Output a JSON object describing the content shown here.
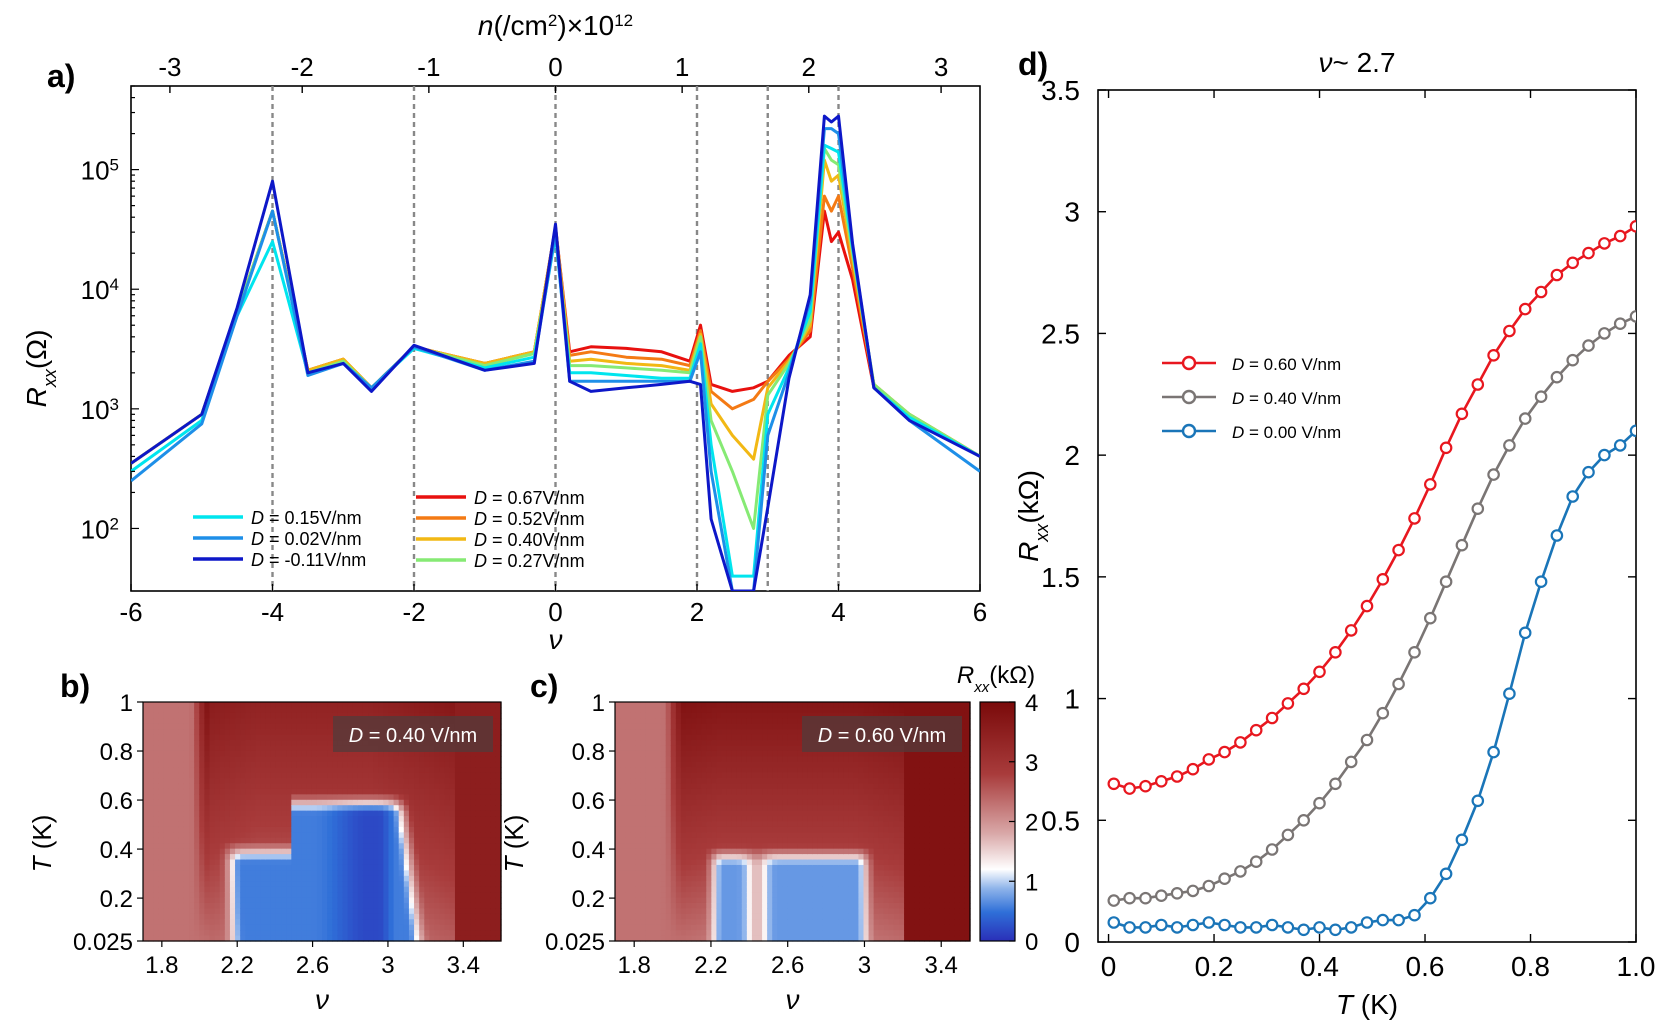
{
  "panels": {
    "a": {
      "label": "a)"
    },
    "b": {
      "label": "b)"
    },
    "c": {
      "label": "c)"
    },
    "d": {
      "label": "d)"
    }
  },
  "colorbar": {
    "title_sym": "R",
    "title_sub": "xx",
    "title_unit": "(kΩ)",
    "ticks": [
      "4",
      "3",
      "2",
      "1",
      "0"
    ]
  },
  "chart_data": [
    {
      "id": "a",
      "type": "line",
      "xlabel": "ν",
      "ylabel_sym": "R",
      "ylabel_sub": "xx",
      "ylabel_unit": "(Ω)",
      "top_axis_label": "n(/cm²)×10¹²",
      "top_axis_parts": {
        "sym": "n",
        "unit": "(/cm",
        "sup2": "2",
        "close": ")",
        "times": "×10",
        "exp": "12"
      },
      "xlim": [
        -6,
        6
      ],
      "ylim": [
        30,
        500000
      ],
      "yscale": "log",
      "x_ticks": [
        "-6",
        "-4",
        "-2",
        "0",
        "2",
        "4",
        "6"
      ],
      "y_ticks": [
        {
          "base": "10",
          "exp": "2",
          "value": 100
        },
        {
          "base": "10",
          "exp": "3",
          "value": 1000
        },
        {
          "base": "10",
          "exp": "4",
          "value": 10000
        },
        {
          "base": "10",
          "exp": "5",
          "value": 100000
        }
      ],
      "top_ticks": [
        {
          "label": "-3",
          "nu": -5.45
        },
        {
          "label": "-2",
          "nu": -3.58
        },
        {
          "label": "-1",
          "nu": -1.79
        },
        {
          "label": "0",
          "nu": 0
        },
        {
          "label": "1",
          "nu": 1.79
        },
        {
          "label": "2",
          "nu": 3.58
        },
        {
          "label": "3",
          "nu": 5.45
        }
      ],
      "dashed_lines_nu": [
        -4,
        -2,
        0,
        2,
        3,
        4
      ],
      "legend_left": [
        {
          "text": "D = 0.15V/nm",
          "color": "#00e5ee"
        },
        {
          "text": "D = 0.02V/nm",
          "color": "#1e8fe8"
        },
        {
          "text": "D = -0.11V/nm",
          "color": "#0d17c8"
        }
      ],
      "legend_right": [
        {
          "text": "D = 0.67V/nm",
          "color": "#e8110f"
        },
        {
          "text": "D = 0.52V/nm",
          "color": "#f47a14"
        },
        {
          "text": "D = 0.40V/nm",
          "color": "#f2b814"
        },
        {
          "text": "D = 0.27V/nm",
          "color": "#86ea74"
        }
      ],
      "series": [
        {
          "name": "D = 0.67V/nm",
          "color": "#e8110f",
          "x": [
            -6,
            -5,
            -4.5,
            -4.0,
            -3.5,
            -3.0,
            -2.6,
            -2.0,
            -1.0,
            -0.3,
            0.0,
            0.2,
            0.5,
            1.0,
            1.5,
            1.9,
            2.05,
            2.2,
            2.5,
            2.8,
            3.0,
            3.3,
            3.6,
            3.8,
            3.9,
            4.0,
            4.2,
            4.5,
            5.0,
            6.0
          ],
          "y": [
            350,
            900,
            6500,
            45000,
            2100,
            2600,
            1500,
            3300,
            2400,
            3000,
            33000,
            3000,
            3300,
            3200,
            3000,
            2500,
            5000,
            1600,
            1400,
            1500,
            1700,
            2800,
            4000,
            45000,
            25000,
            30000,
            12000,
            1500,
            900,
            400
          ]
        },
        {
          "name": "D = 0.52V/nm",
          "color": "#f47a14",
          "x": [
            -6,
            -5,
            -4.5,
            -4.0,
            -3.5,
            -3.0,
            -2.6,
            -2.0,
            -1.0,
            -0.3,
            0.0,
            0.2,
            0.5,
            1.0,
            1.5,
            1.9,
            2.05,
            2.2,
            2.5,
            2.8,
            3.0,
            3.3,
            3.6,
            3.8,
            3.9,
            4.0,
            4.2,
            4.5,
            5.0,
            6.0
          ],
          "y": [
            350,
            900,
            6500,
            45000,
            2100,
            2600,
            1500,
            3300,
            2400,
            3000,
            33000,
            2800,
            3000,
            2700,
            2600,
            2300,
            4500,
            1400,
            1000,
            1200,
            1700,
            2600,
            4500,
            60000,
            45000,
            60000,
            15000,
            1600,
            900,
            400
          ]
        },
        {
          "name": "D = 0.40V/nm",
          "color": "#f2b814",
          "x": [
            -6,
            -5,
            -4.5,
            -4.0,
            -3.5,
            -3.0,
            -2.6,
            -2.0,
            -1.0,
            -0.3,
            0.0,
            0.2,
            0.5,
            1.0,
            1.5,
            1.9,
            2.05,
            2.2,
            2.5,
            2.8,
            3.0,
            3.3,
            3.6,
            3.8,
            3.9,
            4.0,
            4.2,
            4.5,
            5.0,
            6.0
          ],
          "y": [
            350,
            900,
            6500,
            45000,
            2100,
            2600,
            1500,
            3300,
            2400,
            3000,
            33000,
            2500,
            2600,
            2400,
            2300,
            2100,
            4200,
            1100,
            600,
            380,
            1500,
            2500,
            5000,
            120000,
            80000,
            90000,
            18000,
            1600,
            900,
            400
          ]
        },
        {
          "name": "D = 0.27V/nm",
          "color": "#86ea74",
          "x": [
            -6,
            -5,
            -4.5,
            -4.0,
            -3.5,
            -3.0,
            -2.6,
            -2.0,
            -1.0,
            -0.3,
            0.0,
            0.2,
            0.5,
            1.0,
            1.5,
            1.9,
            2.05,
            2.2,
            2.5,
            2.8,
            3.0,
            3.3,
            3.6,
            3.8,
            3.9,
            4.0,
            4.2,
            4.5,
            5.0,
            6.0
          ],
          "y": [
            350,
            900,
            6500,
            45000,
            2000,
            2500,
            1500,
            3300,
            2300,
            2900,
            30000,
            2300,
            2300,
            2200,
            2100,
            2000,
            4000,
            800,
            300,
            100,
            1300,
            2400,
            5500,
            150000,
            120000,
            110000,
            20000,
            1600,
            900,
            400
          ]
        },
        {
          "name": "D = 0.15V/nm",
          "color": "#00e5ee",
          "x": [
            -6,
            -5,
            -4.5,
            -4.0,
            -3.5,
            -3.0,
            -2.6,
            -2.0,
            -1.0,
            -0.3,
            0.0,
            0.2,
            0.5,
            1.0,
            1.5,
            1.9,
            2.05,
            2.2,
            2.5,
            2.8,
            3.0,
            3.3,
            3.6,
            3.8,
            3.9,
            4.0,
            4.2,
            4.5,
            5.0,
            6.0
          ],
          "y": [
            300,
            800,
            6000,
            25000,
            2000,
            2400,
            1500,
            3200,
            2200,
            2700,
            28000,
            2000,
            2000,
            1900,
            1800,
            1800,
            3500,
            500,
            40,
            40,
            900,
            2200,
            6500,
            160000,
            150000,
            140000,
            22000,
            1500,
            850,
            400
          ]
        },
        {
          "name": "D = 0.02V/nm",
          "color": "#1e8fe8",
          "x": [
            -6,
            -5,
            -4.5,
            -4.0,
            -3.5,
            -3.0,
            -2.6,
            -2.0,
            -1.0,
            -0.3,
            0.0,
            0.2,
            0.5,
            1.0,
            1.5,
            1.9,
            2.05,
            2.2,
            2.5,
            2.8,
            3.0,
            3.3,
            3.6,
            3.8,
            3.9,
            4.0,
            4.2,
            4.5,
            5.0,
            6.0
          ],
          "y": [
            250,
            750,
            6000,
            45000,
            1900,
            2400,
            1500,
            3300,
            2100,
            2500,
            30000,
            1700,
            1700,
            1700,
            1700,
            1700,
            3000,
            300,
            30,
            30,
            600,
            2000,
            8000,
            220000,
            220000,
            200000,
            23000,
            1500,
            800,
            300
          ]
        },
        {
          "name": "D = -0.11V/nm",
          "color": "#0d17c8",
          "x": [
            -6,
            -5,
            -4.5,
            -4.0,
            -3.5,
            -3.0,
            -2.6,
            -2.0,
            -1.0,
            -0.3,
            0.0,
            0.2,
            0.5,
            1.0,
            1.5,
            1.9,
            2.05,
            2.2,
            2.5,
            2.8,
            3.0,
            3.3,
            3.6,
            3.8,
            3.9,
            4.0,
            4.2,
            4.5,
            5.0,
            6.0
          ],
          "y": [
            350,
            900,
            7000,
            80000,
            2000,
            2400,
            1400,
            3400,
            2100,
            2400,
            35000,
            1700,
            1400,
            1500,
            1600,
            1700,
            1600,
            120,
            30,
            30,
            150,
            1800,
            9000,
            280000,
            250000,
            280000,
            24000,
            1500,
            800,
            400
          ]
        }
      ]
    },
    {
      "id": "b",
      "type": "heatmap",
      "xlabel": "ν",
      "ylabel_sym": "T",
      "ylabel_unit": "(K)",
      "xlim": [
        1.7,
        3.6
      ],
      "ylim": [
        0.025,
        1.0
      ],
      "x_ticks": [
        "1.8",
        "2.2",
        "2.6",
        "3",
        "3.4"
      ],
      "y_ticks": [
        "1",
        "0.8",
        "0.6",
        "0.4",
        "0.2",
        "0.025"
      ],
      "annotation": "D = 0.40 V/nm",
      "annotation_sym": "D",
      "annotation_rest": " = 0.40 V/nm",
      "zlim": [
        0,
        4
      ],
      "z_label": "Rxx (kΩ)",
      "superconducting_region": {
        "nu_range": [
          2.15,
          3.15
        ],
        "T_max": 0.58
      }
    },
    {
      "id": "c",
      "type": "heatmap",
      "xlabel": "ν",
      "ylabel_sym": "T",
      "ylabel_unit": "(K)",
      "xlim": [
        1.7,
        3.55
      ],
      "ylim": [
        0.025,
        1.0
      ],
      "x_ticks": [
        "1.8",
        "2.2",
        "2.6",
        "3",
        "3.4"
      ],
      "y_ticks": [
        "1",
        "0.8",
        "0.6",
        "0.4",
        "0.2",
        "0.025"
      ],
      "annotation": "D = 0.60 V/nm",
      "annotation_sym": "D",
      "annotation_rest": " = 0.60 V/nm",
      "zlim": [
        0,
        4
      ],
      "z_label": "Rxx (kΩ)",
      "superconducting_region": {
        "nu_range": [
          2.25,
          3.0
        ],
        "T_max": 0.38
      }
    },
    {
      "id": "d",
      "type": "line",
      "title": "ν~ 2.7",
      "title_sym": "ν",
      "title_rest": "~ 2.7",
      "xlabel": "T (K)",
      "xlabel_sym": "T",
      "xlabel_unit": "(K)",
      "ylabel_sym": "R",
      "ylabel_sub": "xx",
      "ylabel_unit": "(kΩ)",
      "xlim": [
        -0.02,
        1.0
      ],
      "ylim": [
        0,
        3.5
      ],
      "x_ticks": [
        "0",
        "0.2",
        "0.4",
        "0.6",
        "0.8",
        "1.0"
      ],
      "y_ticks": [
        "0",
        "0.5",
        "1",
        "1.5",
        "2",
        "2.5",
        "3",
        "3.5"
      ],
      "legend": [
        {
          "sym": "D",
          "rest": " = 0.60 V/nm",
          "color": "#e8171f"
        },
        {
          "sym": "D",
          "rest": " = 0.40 V/nm",
          "color": "#7a7574"
        },
        {
          "sym": "D",
          "rest": " = 0.00 V/nm",
          "color": "#1a75b8"
        }
      ],
      "series": [
        {
          "name": "D = 0.60 V/nm",
          "color": "#e8171f",
          "x": [
            0.01,
            0.04,
            0.07,
            0.1,
            0.13,
            0.16,
            0.19,
            0.22,
            0.25,
            0.28,
            0.31,
            0.34,
            0.37,
            0.4,
            0.43,
            0.46,
            0.49,
            0.52,
            0.55,
            0.58,
            0.61,
            0.64,
            0.67,
            0.7,
            0.73,
            0.76,
            0.79,
            0.82,
            0.85,
            0.88,
            0.91,
            0.94,
            0.97,
            1.0
          ],
          "y": [
            0.65,
            0.63,
            0.64,
            0.66,
            0.68,
            0.71,
            0.75,
            0.78,
            0.82,
            0.87,
            0.92,
            0.98,
            1.04,
            1.11,
            1.19,
            1.28,
            1.38,
            1.49,
            1.61,
            1.74,
            1.88,
            2.03,
            2.17,
            2.29,
            2.41,
            2.51,
            2.6,
            2.67,
            2.74,
            2.79,
            2.83,
            2.87,
            2.9,
            2.94
          ]
        },
        {
          "name": "D = 0.40 V/nm",
          "color": "#7a7574",
          "x": [
            0.01,
            0.04,
            0.07,
            0.1,
            0.13,
            0.16,
            0.19,
            0.22,
            0.25,
            0.28,
            0.31,
            0.34,
            0.37,
            0.4,
            0.43,
            0.46,
            0.49,
            0.52,
            0.55,
            0.58,
            0.61,
            0.64,
            0.67,
            0.7,
            0.73,
            0.76,
            0.79,
            0.82,
            0.85,
            0.88,
            0.91,
            0.94,
            0.97,
            1.0
          ],
          "y": [
            0.17,
            0.18,
            0.18,
            0.19,
            0.2,
            0.21,
            0.23,
            0.26,
            0.29,
            0.33,
            0.38,
            0.44,
            0.5,
            0.57,
            0.65,
            0.74,
            0.83,
            0.94,
            1.06,
            1.19,
            1.33,
            1.48,
            1.63,
            1.78,
            1.92,
            2.04,
            2.15,
            2.24,
            2.32,
            2.39,
            2.45,
            2.5,
            2.54,
            2.57
          ]
        },
        {
          "name": "D = 0.00 V/nm",
          "color": "#1a75b8",
          "x": [
            0.01,
            0.04,
            0.07,
            0.1,
            0.13,
            0.16,
            0.19,
            0.22,
            0.25,
            0.28,
            0.31,
            0.34,
            0.37,
            0.4,
            0.43,
            0.46,
            0.49,
            0.52,
            0.55,
            0.58,
            0.61,
            0.64,
            0.67,
            0.7,
            0.73,
            0.76,
            0.79,
            0.82,
            0.85,
            0.88,
            0.91,
            0.94,
            0.97,
            1.0
          ],
          "y": [
            0.08,
            0.06,
            0.06,
            0.07,
            0.06,
            0.07,
            0.08,
            0.07,
            0.06,
            0.06,
            0.07,
            0.06,
            0.05,
            0.06,
            0.05,
            0.06,
            0.08,
            0.09,
            0.09,
            0.11,
            0.18,
            0.28,
            0.42,
            0.58,
            0.78,
            1.02,
            1.27,
            1.48,
            1.67,
            1.83,
            1.93,
            2.0,
            2.04,
            2.1
          ]
        }
      ]
    }
  ]
}
